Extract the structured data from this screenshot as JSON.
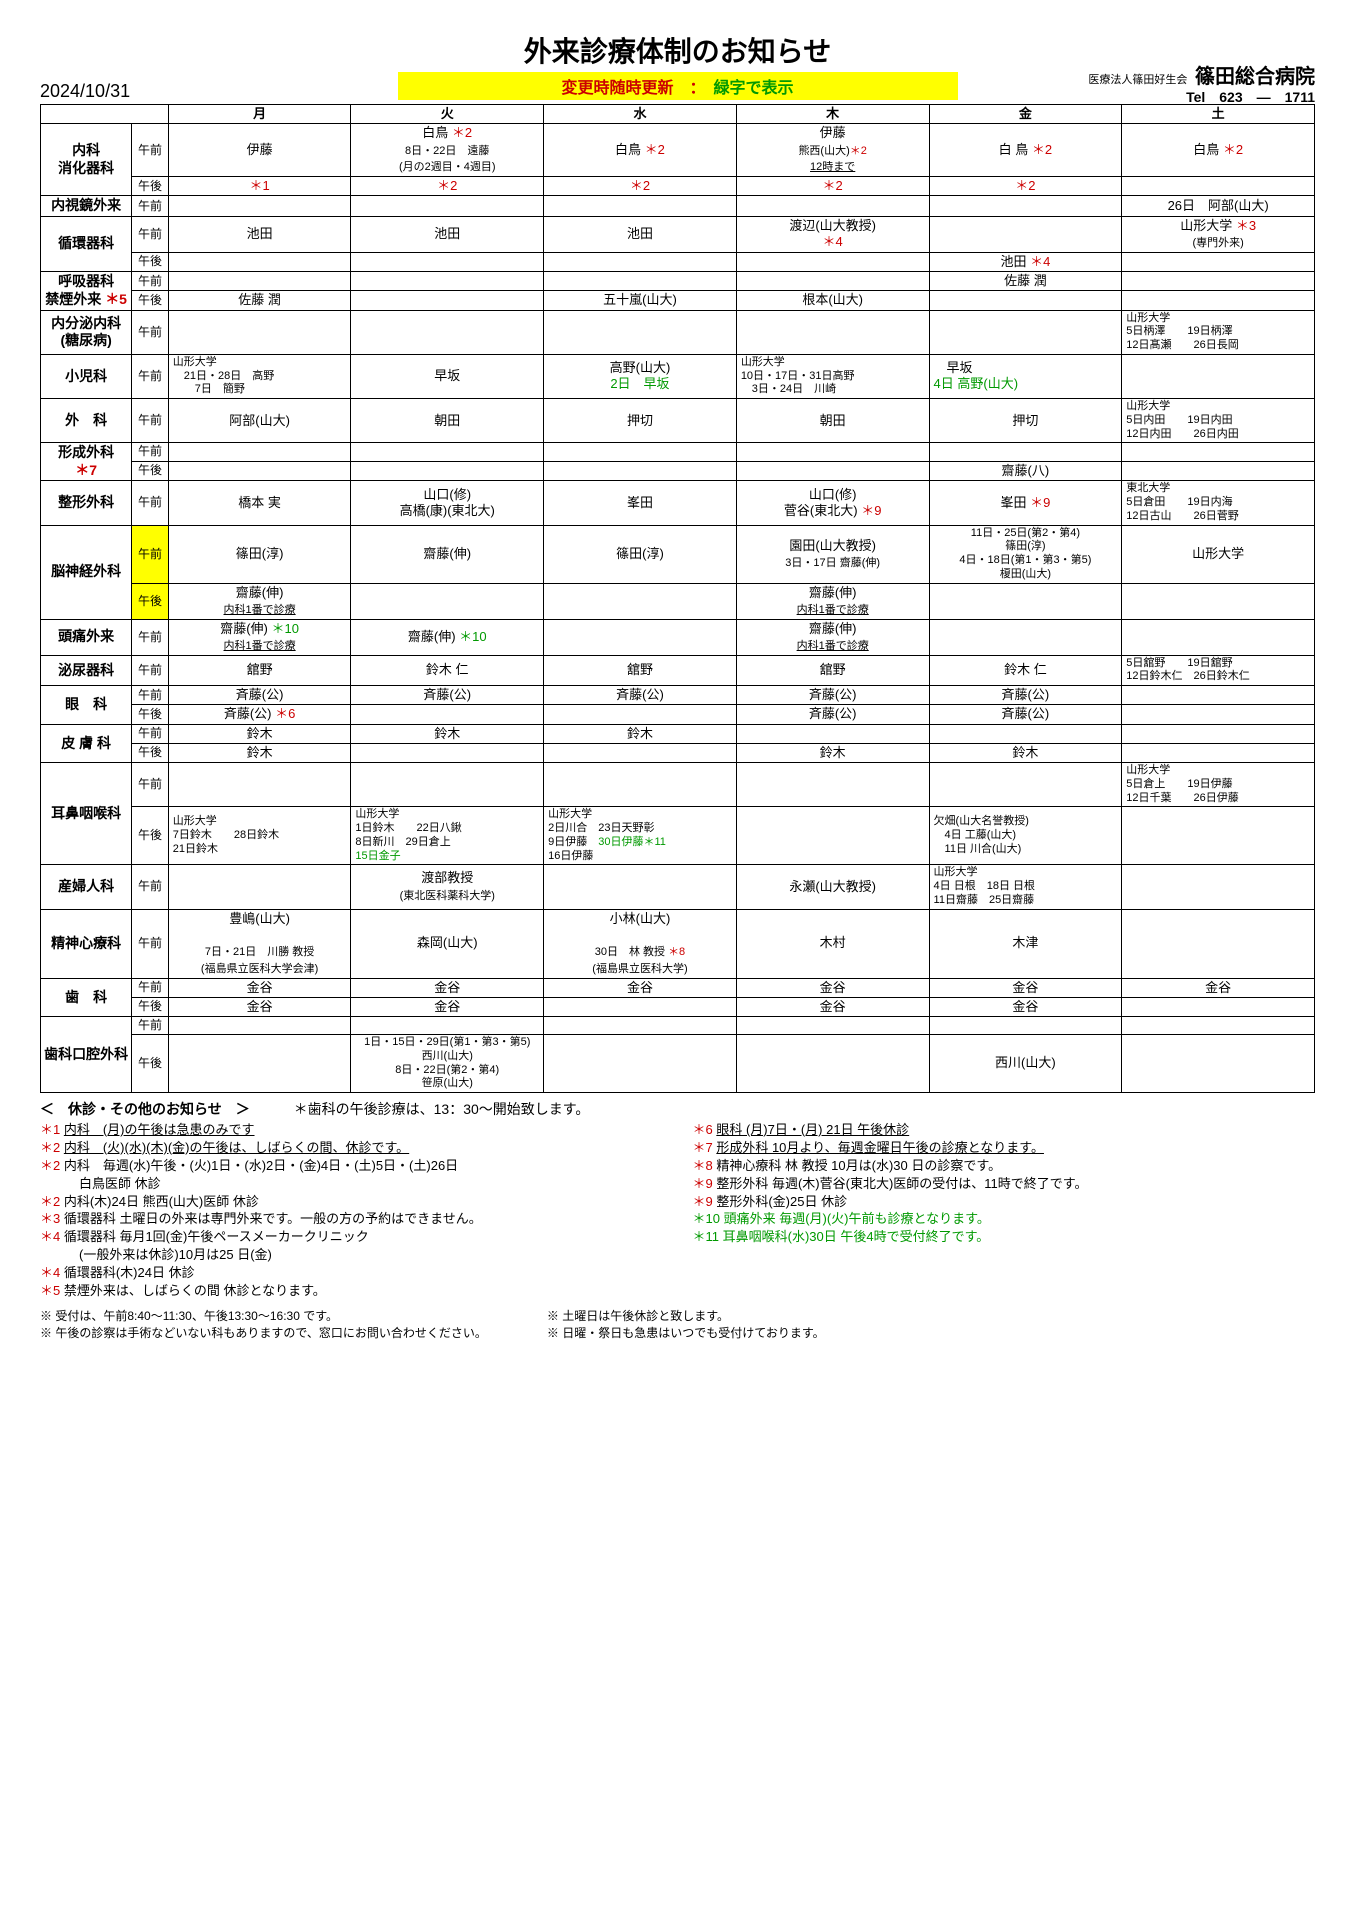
{
  "title": "外来診療体制のお知らせ",
  "subtitle_pre": "変更時随時更新　：　",
  "subtitle_green": "緑字で表示",
  "date": "2024/10/31",
  "corp": "医療法人篠田好生会",
  "hospital": "篠田総合病院",
  "tel": "Tel　623　―　1711",
  "days": [
    "月",
    "火",
    "水",
    "木",
    "金",
    "土"
  ],
  "notes_title": "＜　休診・その他のお知らせ　＞",
  "notes_shika": "＊歯科の午後診療は、13：30～開始致します。",
  "left_notes": [
    {
      "mark": "＊1",
      "c": "r",
      "text": "内科　(月)の午後は急患のみです",
      "u": 1
    },
    {
      "mark": "＊2",
      "c": "r",
      "text": "内科　(火)(水)(木)(金)の午後は、しばらくの間、休診です。",
      "u": 1
    },
    {
      "mark": "＊2",
      "c": "r",
      "text": "内科　毎週(水)午後・(火)1日・(水)2日・(金)4日・(土)5日・(土)26日"
    },
    {
      "mark": "",
      "c": "",
      "text": "　　　白鳥医師  休診"
    },
    {
      "mark": "＊2",
      "c": "r",
      "text": "内科(木)24日  熊西(山大)医師  休診"
    },
    {
      "mark": "＊3",
      "c": "r",
      "text": "循環器科  土曜日の外来は専門外来です。一般の方の予約はできません。"
    },
    {
      "mark": "＊4",
      "c": "r",
      "text": "循環器科  毎月1回(金)午後ペースメーカークリニック"
    },
    {
      "mark": "",
      "c": "",
      "text": "　　　(一般外来は休診)10月は25 日(金)"
    },
    {
      "mark": "＊4",
      "c": "r",
      "text": "循環器科(木)24日  休診"
    },
    {
      "mark": "＊5",
      "c": "r",
      "text": "禁煙外来は、しばらくの間  休診となります。"
    }
  ],
  "right_notes": [
    {
      "mark": "＊6",
      "c": "r",
      "text": "眼科 (月)7日・(月) 21日  午後休診",
      "u": 1
    },
    {
      "mark": "＊7",
      "c": "r",
      "text": "形成外科  10月より、毎週金曜日午後の診療となります。",
      "u": 1
    },
    {
      "mark": "＊8",
      "c": "r",
      "text": "精神心療科  林  教授  10月は(水)30 日の診察です。"
    },
    {
      "mark": "＊9",
      "c": "r",
      "text": "整形外科  毎週(木)菅谷(東北大)医師の受付は、11時で終了です。"
    },
    {
      "mark": "＊9",
      "c": "r",
      "text": "整形外科(金)25日  休診"
    },
    {
      "mark": "＊10",
      "c": "g",
      "text": "頭痛外来  毎週(月)(火)午前も診療となります。"
    },
    {
      "mark": "＊11",
      "c": "g",
      "text": "耳鼻咽喉科(水)30日  午後4時で受付終了です。"
    }
  ],
  "footer_left": [
    "※ 受付は、午前8:40～11:30、午後13:30～16:30 です。",
    "※ 午後の診察は手術などいない科もありますので、窓口にお問い合わせください。"
  ],
  "footer_right": [
    "※ 土曜日は午後休診と致します。",
    "※ 日曜・祭日も急患はいつでも受付けております。"
  ]
}
